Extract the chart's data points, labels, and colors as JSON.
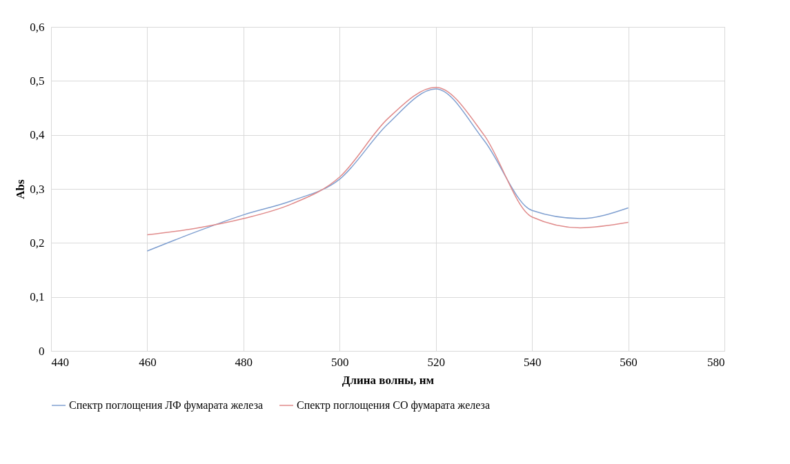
{
  "chart_data": {
    "type": "line",
    "xlabel": "Длина волны, нм",
    "ylabel": "Abs",
    "x": [
      460,
      470,
      480,
      490,
      500,
      510,
      520,
      530,
      540,
      550,
      560
    ],
    "series": [
      {
        "name": "Спектр поглощения ЛФ фумарата железа",
        "color": "#7f9fd0",
        "values": [
          0.185,
          0.22,
          0.252,
          0.278,
          0.318,
          0.42,
          0.485,
          0.39,
          0.26,
          0.245,
          0.265
        ]
      },
      {
        "name": "Спектр поглощения СО фумарата железа",
        "color": "#e08a8a",
        "values": [
          0.215,
          0.227,
          0.245,
          0.272,
          0.322,
          0.43,
          0.488,
          0.4,
          0.248,
          0.228,
          0.238
        ]
      }
    ],
    "xlim": [
      440,
      580
    ],
    "xticks": [
      440,
      460,
      480,
      500,
      520,
      540,
      560,
      580
    ],
    "ylim": [
      0,
      0.6
    ],
    "yticks": [
      {
        "value": 0,
        "label": "0"
      },
      {
        "value": 0.1,
        "label": "0,1"
      },
      {
        "value": 0.2,
        "label": "0,2"
      },
      {
        "value": 0.3,
        "label": "0,3"
      },
      {
        "value": 0.4,
        "label": "0,4"
      },
      {
        "value": 0.5,
        "label": "0,5"
      },
      {
        "value": 0.6,
        "label": "0,6"
      }
    ],
    "grid": true,
    "legend": "bottom",
    "marker": "none",
    "line_style": "solid"
  }
}
